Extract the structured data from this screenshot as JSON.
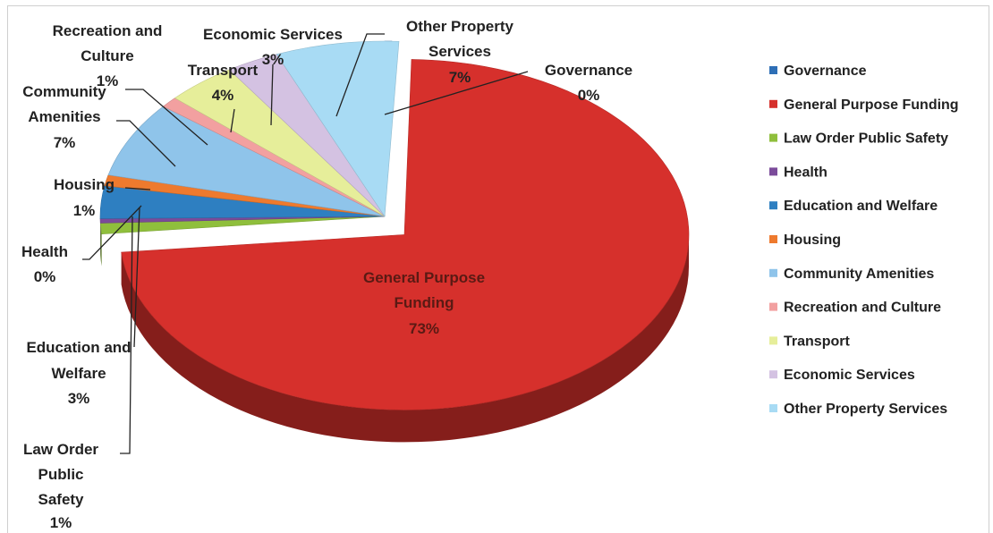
{
  "chart_data": {
    "type": "pie",
    "title": "",
    "legend_position": "right",
    "three_d": true,
    "exploded": "General Purpose Funding",
    "slices": [
      {
        "name": "Governance",
        "value": 0,
        "label": "0%",
        "color": "#2e6fb6"
      },
      {
        "name": "General Purpose Funding",
        "value": 73,
        "label": "73%",
        "color": "#d6302c"
      },
      {
        "name": "Law Order Public Safety",
        "value": 1,
        "label": "1%",
        "color": "#8fbf3c"
      },
      {
        "name": "Health",
        "value": 0,
        "label": "0%",
        "color": "#7b4b9a"
      },
      {
        "name": "Education and Welfare",
        "value": 3,
        "label": "3%",
        "color": "#2e7fc1"
      },
      {
        "name": "Housing",
        "value": 1,
        "label": "1%",
        "color": "#ee7a2e"
      },
      {
        "name": "Community Amenities",
        "value": 7,
        "label": "7%",
        "color": "#8fc4ea"
      },
      {
        "name": "Recreation and Culture",
        "value": 1,
        "label": "1%",
        "color": "#f2a0a0"
      },
      {
        "name": "Transport",
        "value": 4,
        "label": "4%",
        "color": "#e6ee9a"
      },
      {
        "name": "Economic Services",
        "value": 3,
        "label": "3%",
        "color": "#d4c2e2"
      },
      {
        "name": "Other Property Services",
        "value": 7,
        "label": "7%",
        "color": "#a8dbf4"
      }
    ]
  },
  "data_labels": {
    "governance": {
      "name": "Governance",
      "pct": "0%"
    },
    "general_purpose_funding": {
      "name_1": "General Purpose",
      "name_2": "Funding",
      "pct": "73%"
    },
    "law_order": {
      "name_1": "Law Order",
      "name_2": "Public",
      "name_3": "Safety",
      "pct": "1%"
    },
    "health": {
      "name": "Health",
      "pct": "0%"
    },
    "education": {
      "name_1": "Education and",
      "name_2": "Welfare",
      "pct": "3%"
    },
    "housing": {
      "name": "Housing",
      "pct": "1%"
    },
    "community": {
      "name_1": "Community",
      "name_2": "Amenities",
      "pct": "7%"
    },
    "recreation": {
      "name_1": "Recreation and",
      "name_2": "Culture",
      "pct": "1%"
    },
    "transport": {
      "name": "Transport",
      "pct": "4%"
    },
    "economic": {
      "name": "Economic Services",
      "pct": "3%"
    },
    "other_property": {
      "name_1": "Other Property",
      "name_2": "Services",
      "pct": "7%"
    }
  }
}
